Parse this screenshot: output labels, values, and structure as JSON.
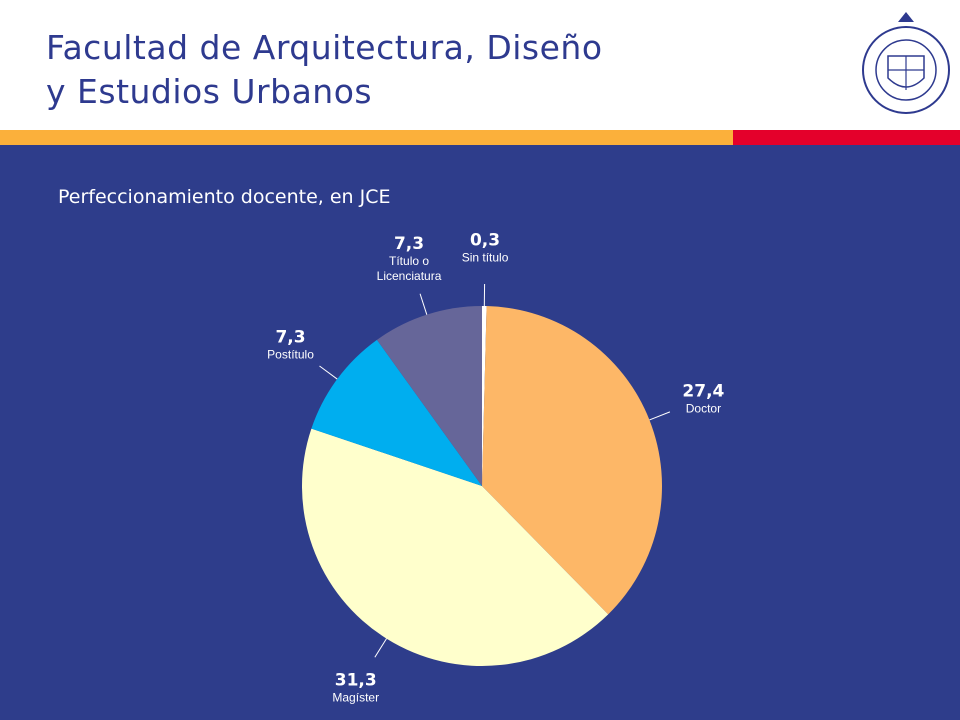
{
  "header": {
    "title": "Facultad de Arquitectura, Diseño\ny Estudios Urbanos"
  },
  "chart_data": {
    "type": "pie",
    "title": "Perfeccionamiento docente, en JCE",
    "categories": [
      "Sin título",
      "Doctor",
      "Magíster",
      "Postítulo",
      "Título o Licenciatura"
    ],
    "values": [
      0.3,
      27.4,
      31.3,
      7.3,
      7.3
    ],
    "value_labels": [
      "0,3",
      "27,4",
      "31,3",
      "7,3",
      "7,3"
    ],
    "colors": [
      "#ffffff",
      "#fdb767",
      "#ffffcc",
      "#00aeef",
      "#666699"
    ]
  }
}
